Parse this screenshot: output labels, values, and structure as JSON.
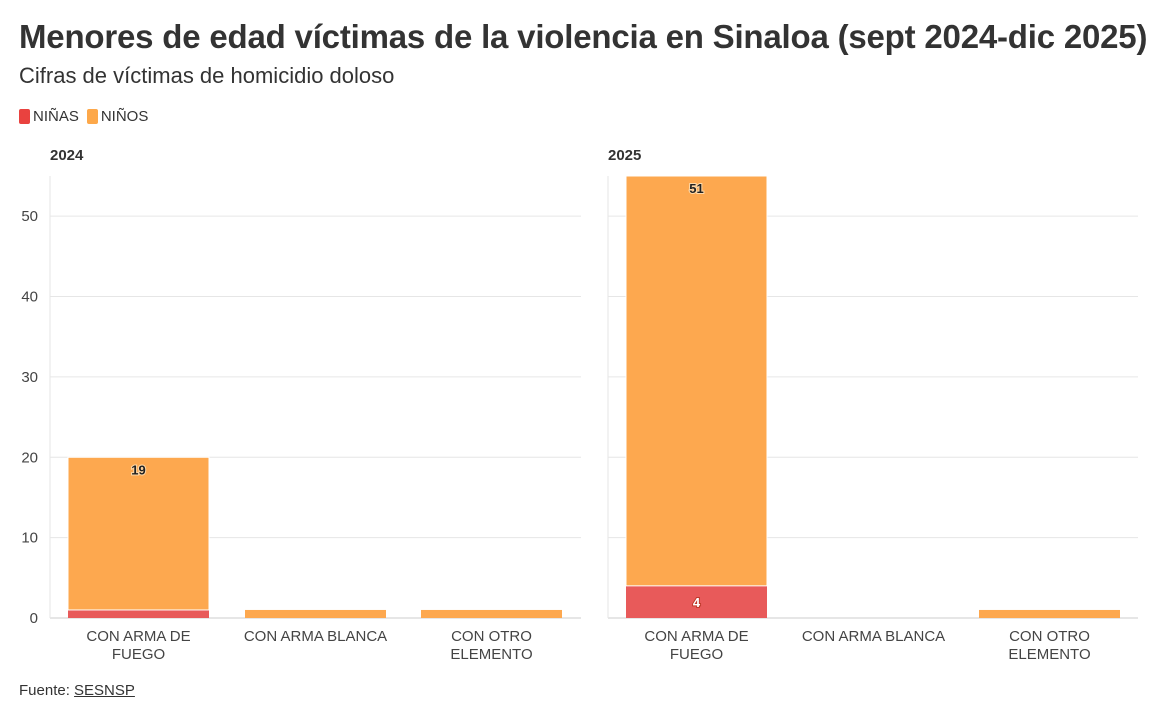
{
  "header": {
    "title": "Menores de edad víctimas de la violencia en Sinaloa (sept 2024-dic 2025)",
    "subtitle": "Cifras de víctimas de homicidio doloso"
  },
  "legend": [
    {
      "label": "NIÑAS",
      "color": "#e9423f"
    },
    {
      "label": "NIÑOS",
      "color": "#fda84a"
    }
  ],
  "footer": {
    "prefix": "Fuente:",
    "link_text": "SESNSP"
  },
  "colors": {
    "ninas": "#e85a5a",
    "ninos": "#fda84f",
    "grid": "#e6e6e6",
    "axis": "#cccccc"
  },
  "chart_data": [
    {
      "type": "bar",
      "stacked": true,
      "title": "2024",
      "categories": [
        "CON ARMA DE FUEGO",
        "CON ARMA BLANCA",
        "CON OTRO ELEMENTO"
      ],
      "series": [
        {
          "name": "NIÑAS",
          "values": [
            1,
            0,
            0
          ]
        },
        {
          "name": "NIÑOS",
          "values": [
            19,
            1,
            1
          ]
        }
      ],
      "data_labels": [
        {
          "series": "NIÑOS",
          "category": "CON ARMA DE FUEGO",
          "text": "19"
        }
      ],
      "yticks": [
        0,
        10,
        20,
        30,
        40,
        50
      ],
      "ylim": [
        0,
        55
      ],
      "grid": true
    },
    {
      "type": "bar",
      "stacked": true,
      "title": "2025",
      "categories": [
        "CON ARMA DE FUEGO",
        "CON ARMA BLANCA",
        "CON OTRO ELEMENTO"
      ],
      "series": [
        {
          "name": "NIÑAS",
          "values": [
            4,
            0,
            0
          ]
        },
        {
          "name": "NIÑOS",
          "values": [
            51,
            0,
            1
          ]
        }
      ],
      "data_labels": [
        {
          "series": "NIÑOS",
          "category": "CON ARMA DE FUEGO",
          "text": "51"
        },
        {
          "series": "NIÑAS",
          "category": "CON ARMA DE FUEGO",
          "text": "4"
        }
      ],
      "yticks": [
        0,
        10,
        20,
        30,
        40,
        50
      ],
      "ylim": [
        0,
        55
      ],
      "grid": true
    }
  ]
}
